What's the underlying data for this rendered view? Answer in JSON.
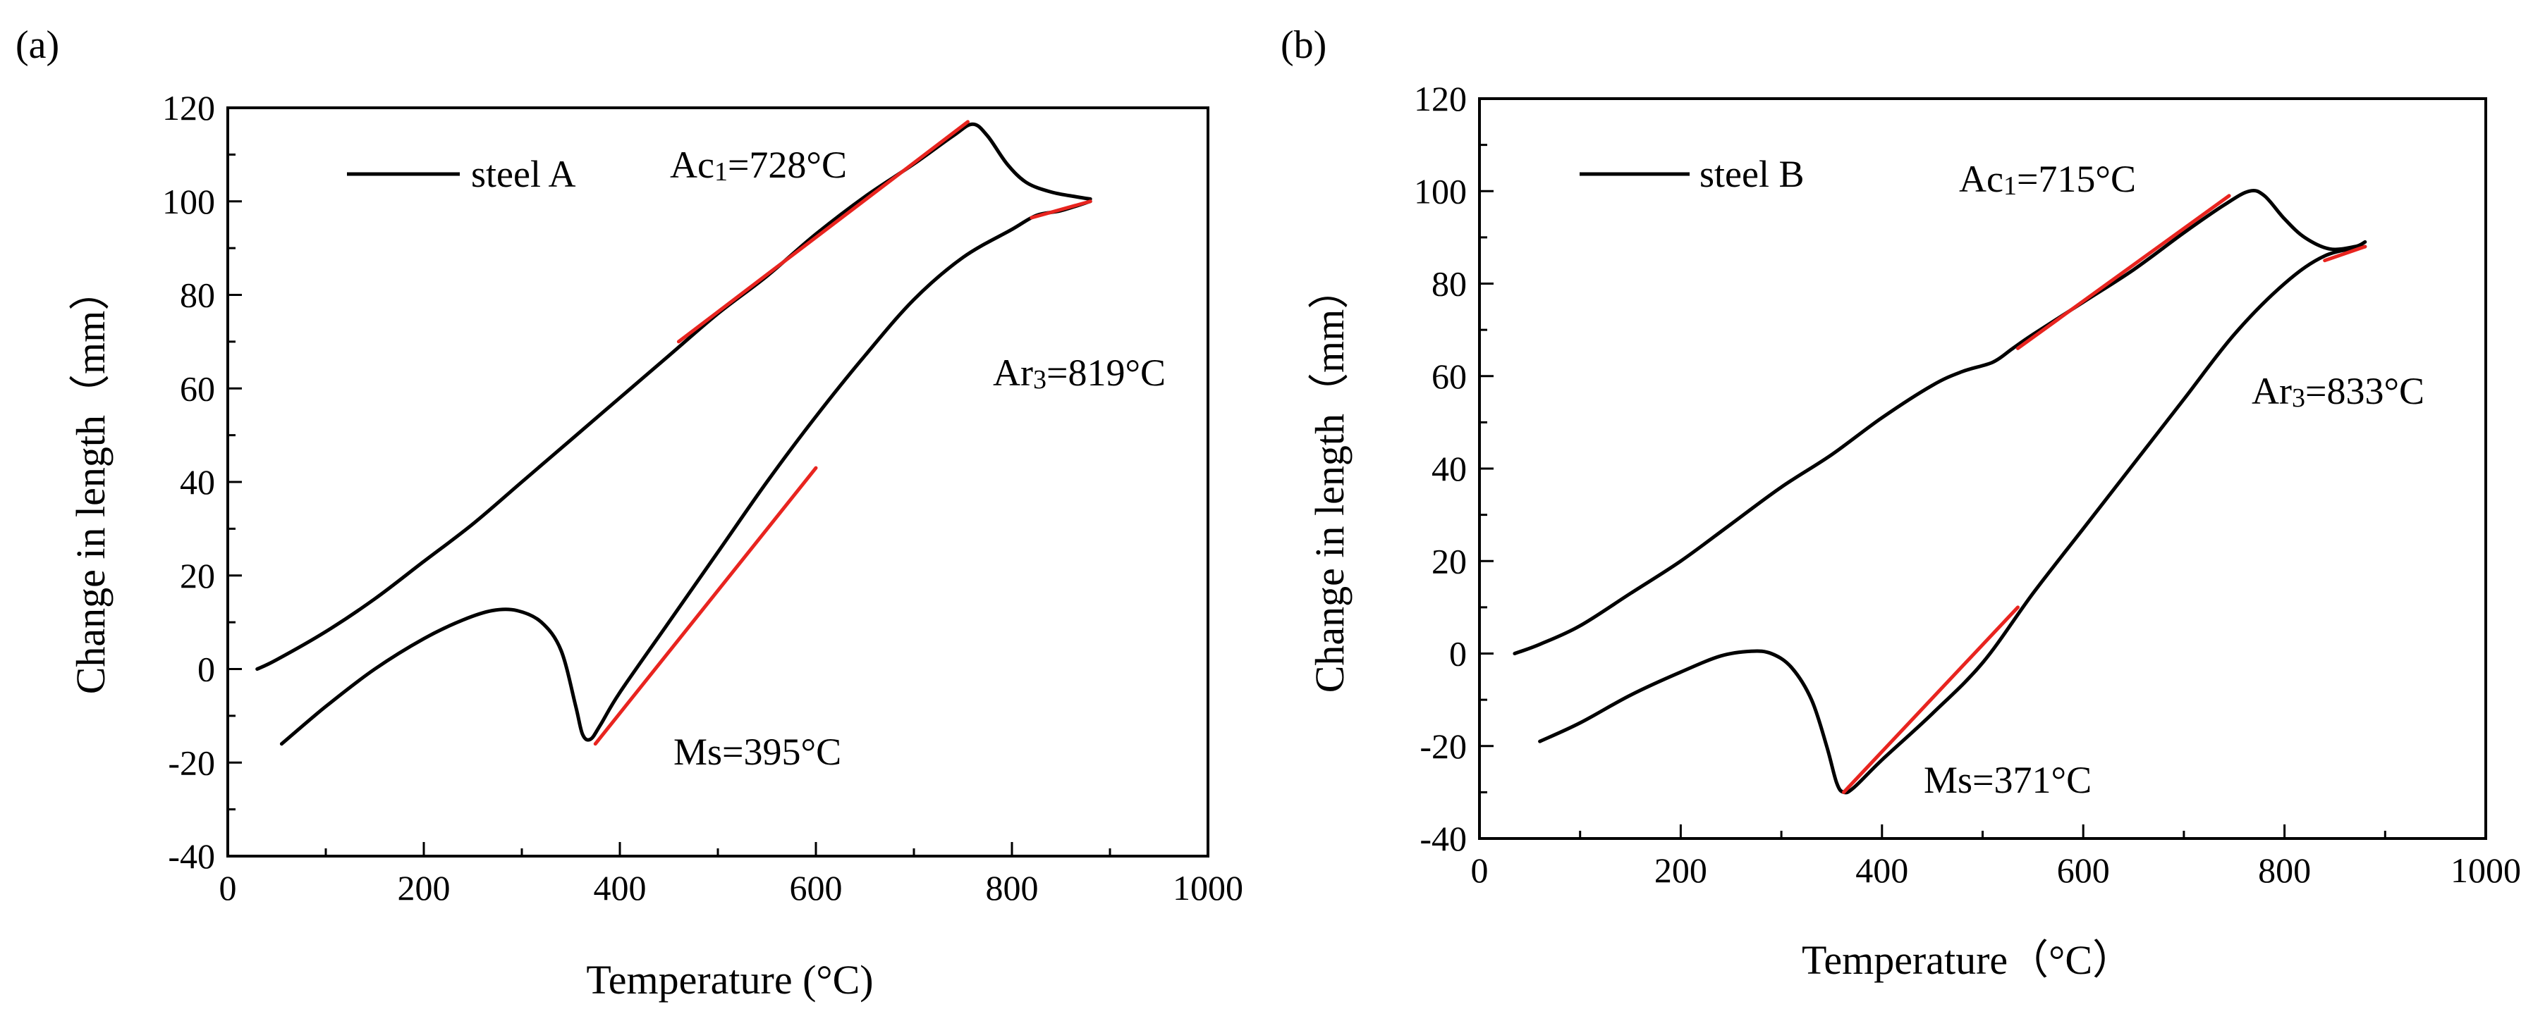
{
  "chart_data": [
    {
      "type": "line",
      "panel_label": "(a)",
      "xlabel": "Temperature (°C)",
      "ylabel": "Change in length（mm）",
      "xlim": [
        0,
        1000
      ],
      "ylim": [
        -40,
        120
      ],
      "xticks": [
        0,
        200,
        400,
        600,
        800,
        1000
      ],
      "yticks": [
        -40,
        -20,
        0,
        20,
        40,
        60,
        80,
        100,
        120
      ],
      "legend": "steel A",
      "series": [
        {
          "name": "steel A heating",
          "color": "#000000",
          "points": [
            [
              30,
              0
            ],
            [
              50,
              2
            ],
            [
              100,
              8
            ],
            [
              150,
              15
            ],
            [
              200,
              23
            ],
            [
              250,
              31
            ],
            [
              300,
              40
            ],
            [
              350,
              49
            ],
            [
              400,
              58
            ],
            [
              450,
              67
            ],
            [
              500,
              76
            ],
            [
              550,
              84
            ],
            [
              600,
              93
            ],
            [
              650,
              101
            ],
            [
              700,
              108
            ],
            [
              740,
              114
            ],
            [
              760,
              116.5
            ],
            [
              775,
              114
            ],
            [
              795,
              108
            ],
            [
              815,
              104
            ],
            [
              840,
              102
            ],
            [
              865,
              101
            ],
            [
              880,
              100.5
            ]
          ]
        },
        {
          "name": "steel A cooling",
          "color": "#000000",
          "points": [
            [
              55,
              -16
            ],
            [
              100,
              -8
            ],
            [
              150,
              0
            ],
            [
              200,
              6.5
            ],
            [
              240,
              10.5
            ],
            [
              270,
              12.5
            ],
            [
              295,
              12.5
            ],
            [
              320,
              10
            ],
            [
              340,
              4
            ],
            [
              355,
              -8
            ],
            [
              362,
              -14
            ],
            [
              370,
              -15
            ],
            [
              380,
              -12
            ],
            [
              400,
              -5
            ],
            [
              450,
              10
            ],
            [
              500,
              25
            ],
            [
              550,
              40
            ],
            [
              600,
              54
            ],
            [
              650,
              67
            ],
            [
              700,
              79
            ],
            [
              750,
              88
            ],
            [
              800,
              94
            ],
            [
              825,
              97
            ],
            [
              850,
              98
            ],
            [
              880,
              100
            ]
          ]
        }
      ],
      "fit_lines": [
        {
          "name": "Ac1 tangent",
          "color": "#e8241f",
          "from": [
            460,
            70
          ],
          "to": [
            755,
            117
          ]
        },
        {
          "name": "Ms tangent",
          "color": "#e8241f",
          "from": [
            375,
            -16
          ],
          "to": [
            600,
            43
          ]
        },
        {
          "name": "Ar3 tangent",
          "color": "#e8241f",
          "from": [
            820,
            96.5
          ],
          "to": [
            880,
            100
          ]
        }
      ],
      "annotations": [
        {
          "base": "Ac",
          "sub": "1",
          "rest": "=728°C"
        },
        {
          "base": "Ar",
          "sub": "3",
          "rest": "=819°C"
        },
        {
          "base": "Ms=395°C",
          "sub": "",
          "rest": ""
        }
      ]
    },
    {
      "type": "line",
      "panel_label": "(b)",
      "xlabel": "Temperature（°C）",
      "ylabel": "Change in length（mm）",
      "xlim": [
        0,
        1000
      ],
      "ylim": [
        -40,
        120
      ],
      "xticks": [
        0,
        200,
        400,
        600,
        800,
        1000
      ],
      "yticks": [
        -40,
        -20,
        0,
        20,
        40,
        60,
        80,
        100,
        120
      ],
      "legend": "steel B",
      "series": [
        {
          "name": "steel B heating",
          "color": "#000000",
          "points": [
            [
              35,
              0
            ],
            [
              60,
              2
            ],
            [
              100,
              6
            ],
            [
              150,
              13
            ],
            [
              200,
              20
            ],
            [
              250,
              28
            ],
            [
              300,
              36
            ],
            [
              350,
              43
            ],
            [
              400,
              51
            ],
            [
              450,
              58
            ],
            [
              480,
              61
            ],
            [
              510,
              63
            ],
            [
              530,
              66
            ],
            [
              550,
              69
            ],
            [
              600,
              76
            ],
            [
              650,
              83
            ],
            [
              700,
              91
            ],
            [
              740,
              97
            ],
            [
              765,
              100
            ],
            [
              780,
              99
            ],
            [
              800,
              94
            ],
            [
              820,
              90
            ],
            [
              845,
              87.5
            ],
            [
              870,
              88
            ],
            [
              880,
              89
            ]
          ]
        },
        {
          "name": "steel B cooling",
          "color": "#000000",
          "points": [
            [
              60,
              -19
            ],
            [
              100,
              -15
            ],
            [
              150,
              -9
            ],
            [
              200,
              -4
            ],
            [
              240,
              -0.5
            ],
            [
              270,
              0.5
            ],
            [
              290,
              0
            ],
            [
              310,
              -3
            ],
            [
              330,
              -10
            ],
            [
              345,
              -20
            ],
            [
              355,
              -28
            ],
            [
              362,
              -30
            ],
            [
              372,
              -29
            ],
            [
              400,
              -23
            ],
            [
              450,
              -13
            ],
            [
              500,
              -2
            ],
            [
              550,
              13
            ],
            [
              600,
              27
            ],
            [
              650,
              41
            ],
            [
              700,
              55
            ],
            [
              750,
              69
            ],
            [
              800,
              80
            ],
            [
              840,
              86
            ],
            [
              880,
              88
            ]
          ]
        }
      ],
      "fit_lines": [
        {
          "name": "Ac1 tangent",
          "color": "#e8241f",
          "from": [
            535,
            66
          ],
          "to": [
            745,
            99
          ]
        },
        {
          "name": "Ms tangent",
          "color": "#e8241f",
          "from": [
            362,
            -30
          ],
          "to": [
            535,
            10
          ]
        },
        {
          "name": "Ar3 tangent",
          "color": "#e8241f",
          "from": [
            840,
            85
          ],
          "to": [
            880,
            88
          ]
        }
      ],
      "annotations": [
        {
          "base": "Ac",
          "sub": "1",
          "rest": "=715°C"
        },
        {
          "base": "Ar",
          "sub": "3",
          "rest": "=833°C"
        },
        {
          "base": "Ms=371°C",
          "sub": "",
          "rest": ""
        }
      ]
    }
  ]
}
